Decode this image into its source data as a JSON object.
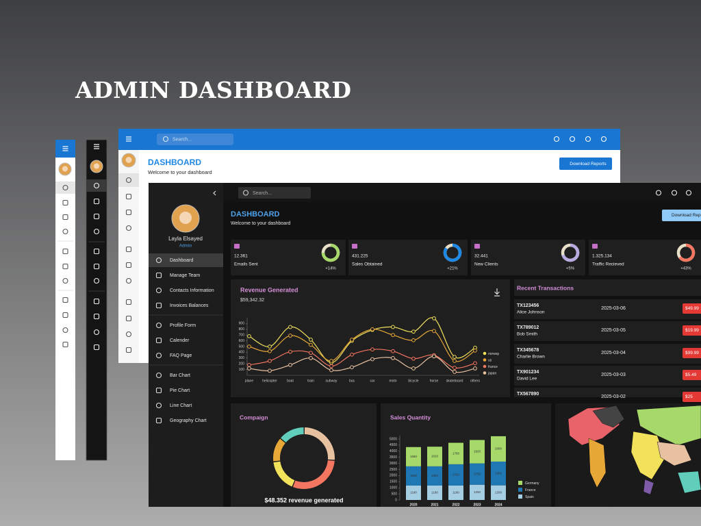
{
  "page": {
    "title": "ADMIN DASHBOARD"
  },
  "light_window": {
    "search_placeholder": "Search...",
    "heading": "DASHBOARD",
    "subheading": "Welcome to your dashboard",
    "button": "Download Reports"
  },
  "dark_window": {
    "search_placeholder": "Search...",
    "profile": {
      "name": "Layla Elsayed",
      "role": "Admin"
    },
    "menu": [
      [
        "Dashboard",
        "Manage Team",
        "Contacts Information",
        "Invoices Balances"
      ],
      [
        "Profile Form",
        "Calender",
        "FAQ Page"
      ],
      [
        "Bar Chart",
        "Pie Chart",
        "Line Chart",
        "Geography Chart"
      ]
    ],
    "heading": "DASHBOARD",
    "subheading": "Welcome to your dashboard",
    "button": "Download Reports",
    "stats": [
      {
        "value": "12.361",
        "label": "Emails Sent",
        "change": "+14%",
        "progress": 75,
        "color": "#a6d96a"
      },
      {
        "value": "431.225",
        "label": "Sales Obtained",
        "change": "+21%",
        "progress": 85,
        "color": "#1e88e5"
      },
      {
        "value": "32.441",
        "label": "New Clients",
        "change": "+5%",
        "progress": 70,
        "color": "#b8a9e0"
      },
      {
        "value": "1.325.134",
        "label": "Traffic Recieved",
        "change": "+43%",
        "progress": 65,
        "color": "#f47560"
      }
    ],
    "revenue": {
      "type": "line",
      "title": "Revenue Generated",
      "amount": "$59,342.32",
      "categories": [
        "plane",
        "helicopter",
        "boat",
        "train",
        "subway",
        "bus",
        "car",
        "moto",
        "bicycle",
        "horse",
        "skateboard",
        "others"
      ],
      "series": [
        {
          "name": "norway",
          "color": "#f1e15b",
          "values": [
            680,
            500,
            840,
            620,
            220,
            600,
            790,
            840,
            760,
            990,
            320,
            480
          ]
        },
        {
          "name": "us",
          "color": "#e8a838",
          "values": [
            500,
            420,
            690,
            530,
            250,
            620,
            800,
            700,
            610,
            770,
            250,
            430
          ]
        },
        {
          "name": "france",
          "color": "#f47560",
          "values": [
            180,
            250,
            410,
            390,
            160,
            360,
            450,
            420,
            290,
            350,
            130,
            210
          ]
        },
        {
          "name": "japan",
          "color": "#e8c1a0",
          "values": [
            120,
            80,
            180,
            300,
            90,
            140,
            280,
            300,
            120,
            330,
            60,
            120
          ]
        }
      ],
      "ylim": [
        0,
        1000
      ],
      "yticks": [
        100,
        200,
        300,
        400,
        500,
        600,
        700,
        800,
        900
      ]
    },
    "transactions": {
      "title": "Recent Transactions",
      "rows": [
        {
          "id": "TX123456",
          "user": "Alice Johnson",
          "date": "2025-03-06",
          "cost": "$49.99"
        },
        {
          "id": "TX789012",
          "user": "Bob Smith",
          "date": "2025-03-05",
          "cost": "$19.99"
        },
        {
          "id": "TX345678",
          "user": "Charlie Brown",
          "date": "2025-03-04",
          "cost": "$99.99"
        },
        {
          "id": "TX901234",
          "user": "David Lee",
          "date": "2025-03-03",
          "cost": "$5.49"
        },
        {
          "id": "TX567890",
          "date": "2025-03-02",
          "cost": "$25"
        }
      ]
    },
    "campaign": {
      "type": "donut",
      "title": "Compaign",
      "caption": "$48.352 revenue generated",
      "values": [
        14,
        26,
        30,
        17,
        13
      ],
      "colors": [
        "#61cdbb",
        "#e8c1a0",
        "#f47560",
        "#f1e15b",
        "#e8a838"
      ]
    },
    "sales": {
      "type": "stacked-bar",
      "title": "Sales Quantity",
      "categories": [
        "2020",
        "2021",
        "2022",
        "2023",
        "2024"
      ],
      "series": [
        {
          "name": "Germany",
          "color": "#a6d96a",
          "values": [
            1580,
            1610,
            1760,
            1920,
            2080
          ]
        },
        {
          "name": "France",
          "color": "#1f78b4",
          "values": [
            1580,
            1580,
            1750,
            1750,
            1950
          ]
        },
        {
          "name": "Spain",
          "color": "#a6cee3",
          "values": [
            1180,
            1180,
            1180,
            1250,
            1200
          ]
        }
      ],
      "ylim": [
        0,
        5300
      ],
      "yticks": [
        0,
        500,
        1000,
        1500,
        2000,
        2500,
        3000,
        3500,
        4000,
        4500,
        5000
      ]
    }
  }
}
